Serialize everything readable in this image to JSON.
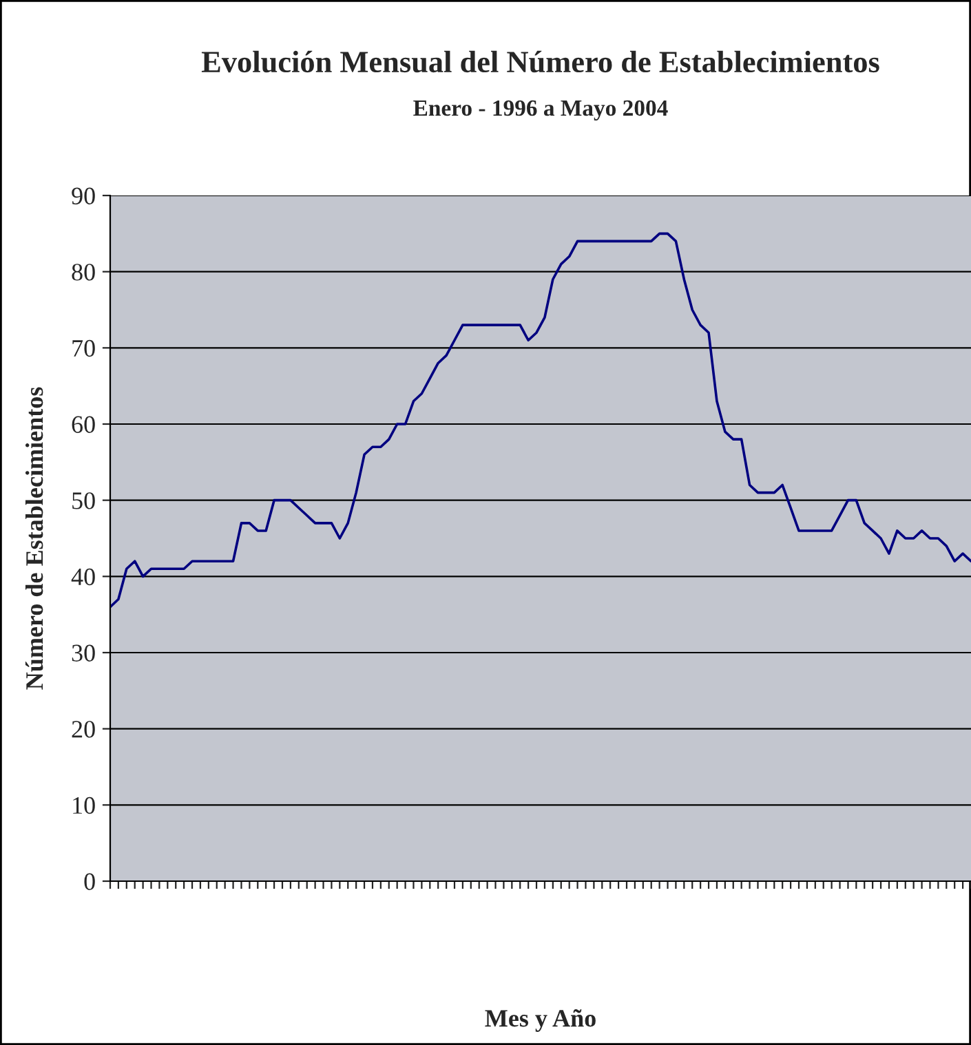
{
  "chart_data": {
    "type": "line",
    "title": "Evolución Mensual del Número de Establecimientos",
    "subtitle": "Enero - 1996 a Mayo 2004",
    "xlabel": "Mes y Año",
    "ylabel": "Número de Establecimientos",
    "categories": [
      null,
      null,
      null,
      null,
      null,
      null,
      null,
      null,
      null,
      null,
      null,
      null,
      null,
      null,
      null,
      null,
      null,
      null,
      null,
      null,
      null,
      null,
      null,
      null,
      null,
      null,
      null,
      null,
      null,
      null,
      null,
      null,
      null,
      null,
      null,
      null,
      null,
      null,
      null,
      null,
      null,
      null,
      null,
      null,
      null,
      null,
      null,
      null,
      null,
      null,
      null,
      null,
      null,
      null,
      null,
      null,
      null,
      null,
      null,
      null,
      null,
      null,
      null,
      null,
      null,
      null,
      null,
      null,
      null,
      null,
      null,
      null,
      null,
      null,
      null,
      null,
      null,
      null,
      null,
      null,
      null,
      null,
      null,
      null,
      null,
      null,
      null,
      null,
      null,
      null,
      null,
      null,
      null,
      null,
      null,
      null,
      null,
      null,
      null,
      null,
      null,
      null,
      null,
      null,
      null,
      null
    ],
    "series": [
      {
        "color": "#000080",
        "values": [
          36,
          37,
          41,
          42,
          40,
          41,
          41,
          41,
          41,
          41,
          42,
          42,
          42,
          42,
          42,
          42,
          47,
          47,
          46,
          46,
          50,
          50,
          50,
          49,
          48,
          47,
          47,
          47,
          45,
          47,
          51,
          56,
          57,
          57,
          58,
          60,
          60,
          63,
          64,
          66,
          68,
          69,
          71,
          73,
          73,
          73,
          73,
          73,
          73,
          73,
          73,
          71,
          72,
          74,
          79,
          81,
          82,
          84,
          84,
          84,
          84,
          84,
          84,
          84,
          84,
          84,
          84,
          85,
          85,
          84,
          79,
          75,
          73,
          72,
          63,
          59,
          58,
          58,
          52,
          51,
          51,
          51,
          52,
          49,
          46,
          46,
          46,
          46,
          46,
          48,
          50,
          50,
          47,
          46,
          45,
          43,
          46,
          45,
          45,
          46,
          45,
          45,
          44,
          42,
          43,
          42
        ]
      }
    ],
    "ylim": [
      0,
      90
    ],
    "yticks": [
      0,
      10,
      20,
      30,
      40,
      50,
      60,
      70,
      80,
      90
    ],
    "grid": "y",
    "tick_labels": "y",
    "legend": false,
    "marker": "none",
    "line_style": "solid"
  }
}
